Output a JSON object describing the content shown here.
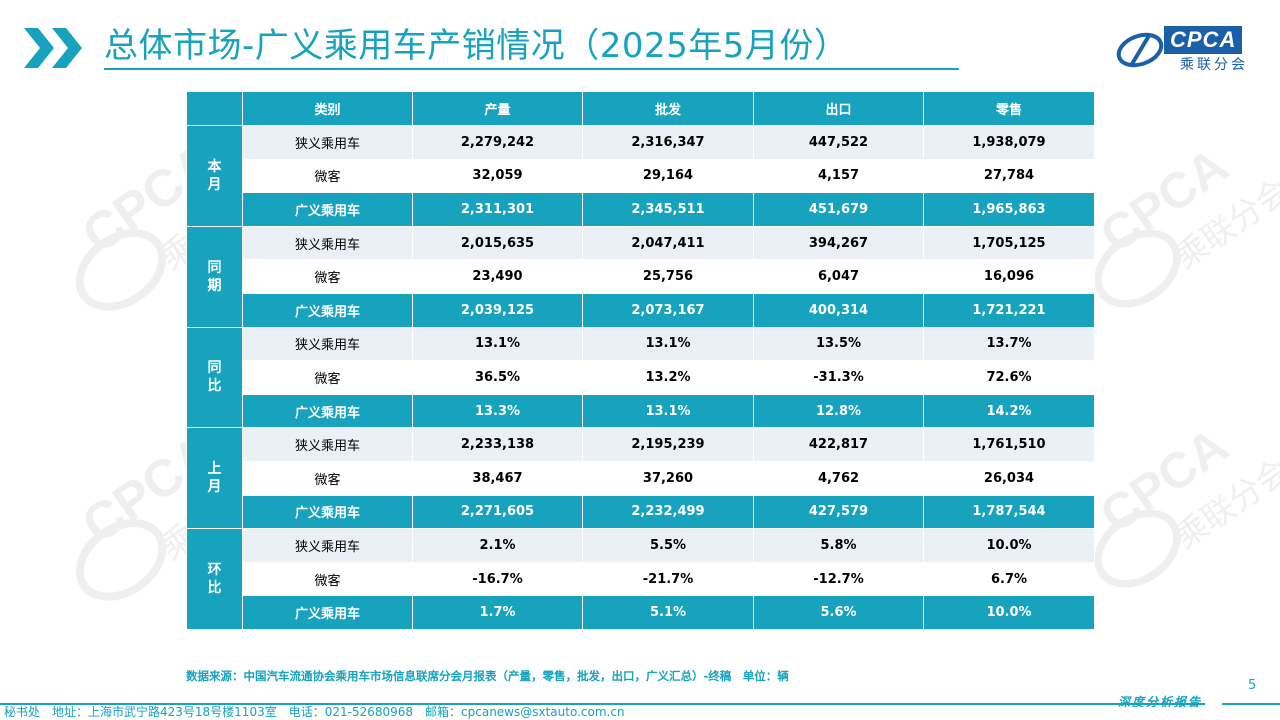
{
  "header": {
    "title": "总体市场-广义乘用车产销情况（2025年5月份）"
  },
  "logo": {
    "text": "CPCA",
    "subtext": "乘联分会"
  },
  "table": {
    "columns": [
      "类别",
      "产量",
      "批发",
      "出口",
      "零售"
    ],
    "groups": [
      {
        "label": "本月",
        "rows": [
          {
            "label": "狭义乘用车",
            "values": [
              "2,279,242",
              "2,316,347",
              "447,522",
              "1,938,079"
            ]
          },
          {
            "label": "微客",
            "values": [
              "32,059",
              "29,164",
              "4,157",
              "27,784"
            ]
          },
          {
            "label": "广义乘用车",
            "values": [
              "2,311,301",
              "2,345,511",
              "451,679",
              "1,965,863"
            ]
          }
        ]
      },
      {
        "label": "同期",
        "rows": [
          {
            "label": "狭义乘用车",
            "values": [
              "2,015,635",
              "2,047,411",
              "394,267",
              "1,705,125"
            ]
          },
          {
            "label": "微客",
            "values": [
              "23,490",
              "25,756",
              "6,047",
              "16,096"
            ]
          },
          {
            "label": "广义乘用车",
            "values": [
              "2,039,125",
              "2,073,167",
              "400,314",
              "1,721,221"
            ]
          }
        ]
      },
      {
        "label": "同比",
        "rows": [
          {
            "label": "狭义乘用车",
            "values": [
              "13.1%",
              "13.1%",
              "13.5%",
              "13.7%"
            ]
          },
          {
            "label": "微客",
            "values": [
              "36.5%",
              "13.2%",
              "-31.3%",
              "72.6%"
            ]
          },
          {
            "label": "广义乘用车",
            "values": [
              "13.3%",
              "13.1%",
              "12.8%",
              "14.2%"
            ]
          }
        ]
      },
      {
        "label": "上月",
        "rows": [
          {
            "label": "狭义乘用车",
            "values": [
              "2,233,138",
              "2,195,239",
              "422,817",
              "1,761,510"
            ]
          },
          {
            "label": "微客",
            "values": [
              "38,467",
              "37,260",
              "4,762",
              "26,034"
            ]
          },
          {
            "label": "广义乘用车",
            "values": [
              "2,271,605",
              "2,232,499",
              "427,579",
              "1,787,544"
            ]
          }
        ]
      },
      {
        "label": "环比",
        "rows": [
          {
            "label": "狭义乘用车",
            "values": [
              "2.1%",
              "5.5%",
              "5.8%",
              "10.0%"
            ]
          },
          {
            "label": "微客",
            "values": [
              "-16.7%",
              "-21.7%",
              "-12.7%",
              "6.7%"
            ]
          },
          {
            "label": "广义乘用车",
            "values": [
              "1.7%",
              "5.1%",
              "5.6%",
              "10.0%"
            ]
          }
        ]
      }
    ]
  },
  "footer": {
    "source": "数据来源：中国汽车流通协会乘用车市场信息联席分会月报表（产量，零售，批发，出口，广义汇总）-终稿　单位：辆",
    "page_number": "5",
    "report_tag": "深度分析报告",
    "contact": "秘书处　地址：上海市武宁路423号18号楼1103室　电话：021-52680968　邮箱：cpcanews@sxtauto.com.cn"
  },
  "colors": {
    "accent": "#17a2bd",
    "row_tint": "#eaf0f6",
    "logo_blue": "#1a5fa8"
  }
}
